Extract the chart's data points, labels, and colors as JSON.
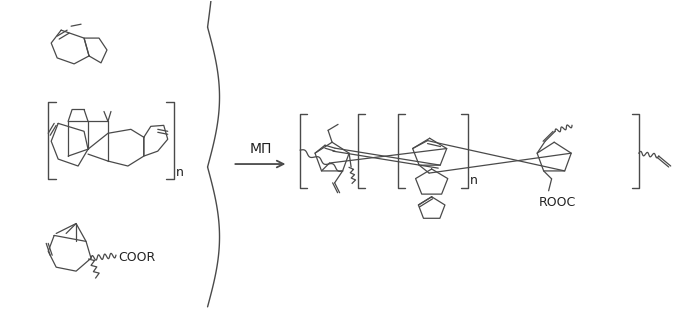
{
  "bg_color": "#ffffff",
  "line_color": "#4a4a4a",
  "text_color": "#222222",
  "figsize": [
    7.0,
    3.36
  ],
  "dpi": 100,
  "mp_label": "МП",
  "n_label": "n",
  "rooc_label": "ROOC",
  "coor_label": "COOR"
}
